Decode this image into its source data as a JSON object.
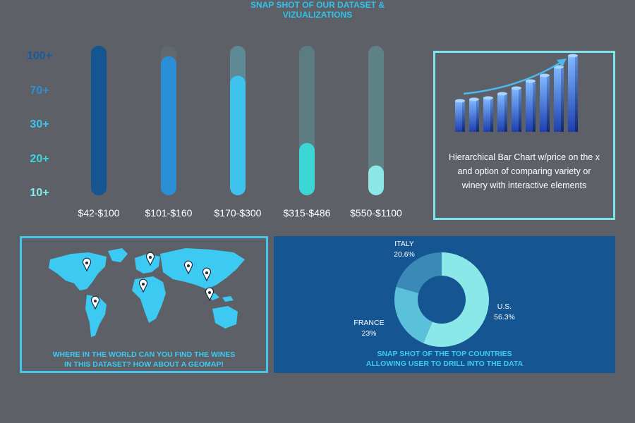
{
  "header": {
    "line1": "SNAP SHOT OF OUR DATASET &",
    "line2": "VIZUALIZATIONS"
  },
  "colors": {
    "background": "#5d6167",
    "accent": "#2fc2ee",
    "panel_blue": "#155591",
    "box_border": "#7fe3ea"
  },
  "chart_data": [
    {
      "type": "bar",
      "title": "",
      "categories": [
        "$42-$100",
        "$101-$160",
        "$170-$300",
        "$315-$486",
        "$550-$1100"
      ],
      "values": [
        100,
        93,
        80,
        35,
        20
      ],
      "value_unit": "percent of track filled",
      "tick_labels": [
        "100+",
        "70+",
        "30+",
        "20+",
        "10+"
      ],
      "tick_label_colors": [
        "#1a5b97",
        "#2d8fd6",
        "#3ec3ee",
        "#3cd7da",
        "#86e8ea"
      ],
      "fill_colors": [
        "#155591",
        "#2b8fd8",
        "#3ec3ee",
        "#3dd6d6",
        "#8de6e8"
      ],
      "track_colors": [
        "#155591",
        "#62686f",
        "#5d8a94",
        "#5b7c80",
        "#5e8286"
      ],
      "xlabel": "",
      "ylabel": "",
      "grid": false
    },
    {
      "type": "pie",
      "title": "",
      "slices": [
        {
          "label": "U.S.",
          "value": 56.3,
          "display": "56.3%",
          "color": "#8ae8e8"
        },
        {
          "label": "FRANCE",
          "value": 23,
          "display": "23%",
          "color": "#5bc1da"
        },
        {
          "label": "ITALY",
          "value": 20.6,
          "display": "20.6%",
          "color": "#3a89b7"
        }
      ],
      "hole": true
    }
  ],
  "bar_chart_card": {
    "icon": "growth-bar-chart-icon",
    "description": "Hierarchical Bar Chart w/price on the x and option of comparing variety or winery with interactive elements"
  },
  "map_card": {
    "icon": "world-map-icon",
    "caption_line1": "WHERE IN THE WORLD CAN YOU FIND THE WINES",
    "caption_line2": "IN THIS DATASET? HOW ABOUT A GEOMAP!"
  },
  "donut_card": {
    "caption_line1": "SNAP SHOT OF THE TOP COUNTRIES",
    "caption_line2": "ALLOWING USER TO DRILL INTO THE DATA"
  }
}
